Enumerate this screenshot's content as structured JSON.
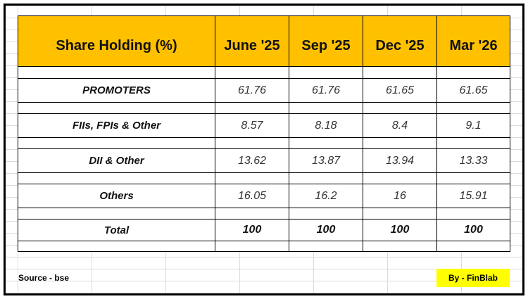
{
  "table": {
    "header": [
      "Share Holding (%)",
      "June '25",
      "Sep '25",
      "Dec '25",
      "Mar '26"
    ],
    "rows": [
      {
        "label": "PROMOTERS",
        "values": [
          61.76,
          61.76,
          61.65,
          61.65
        ]
      },
      {
        "label": "FIIs, FPIs & Other",
        "values": [
          8.57,
          8.18,
          8.4,
          9.1
        ]
      },
      {
        "label": "DII & Other",
        "values": [
          13.62,
          13.87,
          13.94,
          13.33
        ]
      },
      {
        "label": "Others",
        "values": [
          16.05,
          16.2,
          16,
          15.91
        ]
      },
      {
        "label": "Total",
        "values": [
          100,
          100,
          100,
          100
        ]
      }
    ]
  },
  "footer": {
    "source": "Source - bse",
    "credit": "By - FinBlab"
  }
}
